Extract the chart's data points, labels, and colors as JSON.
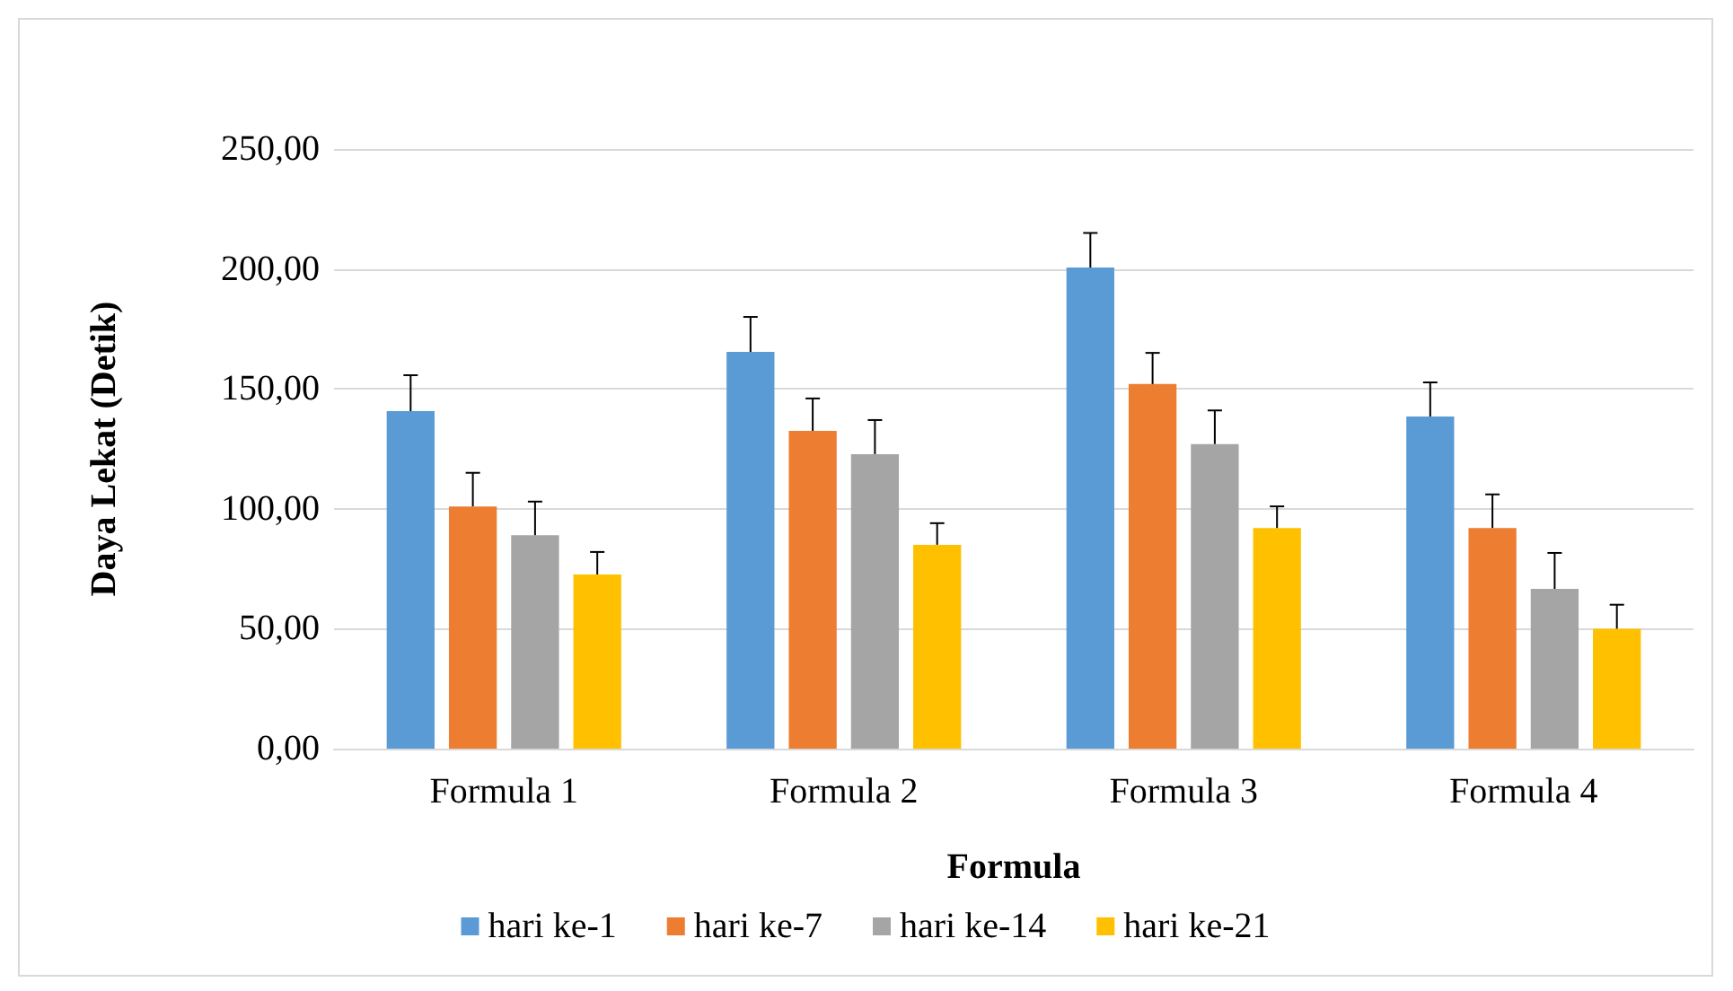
{
  "chart_data": {
    "type": "bar",
    "xlabel": "Formula",
    "ylabel": "Daya Lekat (Detik)",
    "categories": [
      "Formula 1",
      "Formula 2",
      "Formula 3",
      "Formula 4"
    ],
    "series": [
      {
        "name": "hari ke-1",
        "color": "#5b9bd5",
        "values": [
          140.7,
          165.4,
          200.6,
          138.5
        ],
        "errors": [
          [
            140.7,
            155.7
          ],
          [
            165.4,
            180
          ],
          [
            200.6,
            215
          ],
          [
            138.5,
            152.7
          ]
        ]
      },
      {
        "name": "hari ke-7",
        "color": "#ed7d31",
        "values": [
          101,
          132.5,
          152,
          92
        ],
        "errors": [
          [
            101,
            115
          ],
          [
            132.5,
            146
          ],
          [
            152,
            165
          ],
          [
            92,
            106
          ]
        ]
      },
      {
        "name": "hari ke-14",
        "color": "#a5a5a5",
        "values": [
          89,
          122.8,
          127,
          66.6
        ],
        "errors": [
          [
            89,
            103
          ],
          [
            122.8,
            137
          ],
          [
            127,
            141
          ],
          [
            66.6,
            81.6
          ]
        ]
      },
      {
        "name": "hari ke-21",
        "color": "#ffc000",
        "values": [
          72.6,
          85,
          92,
          50
        ],
        "errors": [
          [
            72.6,
            82
          ],
          [
            85,
            94
          ],
          [
            92,
            101
          ],
          [
            50,
            60
          ]
        ]
      }
    ],
    "ylim": [
      0,
      250
    ],
    "yticks": [
      {
        "value": 0,
        "label": "0,00"
      },
      {
        "value": 50,
        "label": "50,00"
      },
      {
        "value": 100,
        "label": "100,00"
      },
      {
        "value": 150,
        "label": "150,00"
      },
      {
        "value": 200,
        "label": "200,00"
      },
      {
        "value": 250,
        "label": "250,00"
      }
    ],
    "grid": "y",
    "legend": "bottom"
  }
}
